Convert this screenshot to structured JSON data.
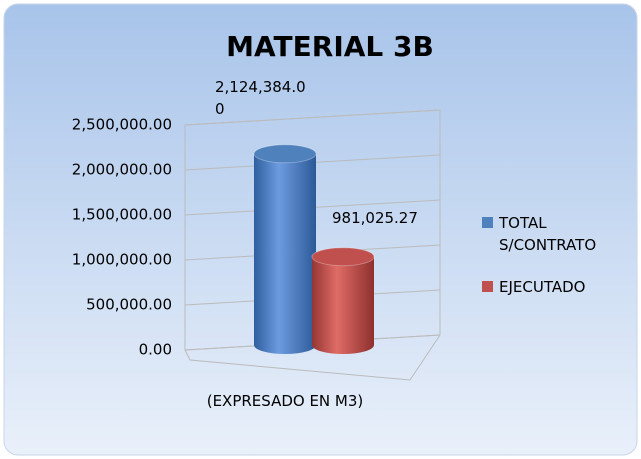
{
  "chart_data": {
    "type": "bar",
    "title": "MATERIAL 3B",
    "categories": [
      "(EXPRESADO EN M3)"
    ],
    "series": [
      {
        "name": "TOTAL S/CONTRATO",
        "color": "#4f81bd",
        "values": [
          2124384.0
        ],
        "value_labels": [
          "2,124,384.00"
        ]
      },
      {
        "name": "EJECUTADO",
        "color": "#c0504d",
        "values": [
          981025.27
        ],
        "value_labels": [
          "981,025.27"
        ]
      }
    ],
    "ylim": [
      0,
      2500000
    ],
    "yticks": [
      {
        "value": 0,
        "label": "0.00"
      },
      {
        "value": 500000,
        "label": "500,000.00"
      },
      {
        "value": 1000000,
        "label": "1,000,000.00"
      },
      {
        "value": 1500000,
        "label": "1,500,000.00"
      },
      {
        "value": 2000000,
        "label": "2,000,000.00"
      },
      {
        "value": 2500000,
        "label": "2,500,000.00"
      }
    ],
    "grid": true,
    "legend": "right"
  }
}
